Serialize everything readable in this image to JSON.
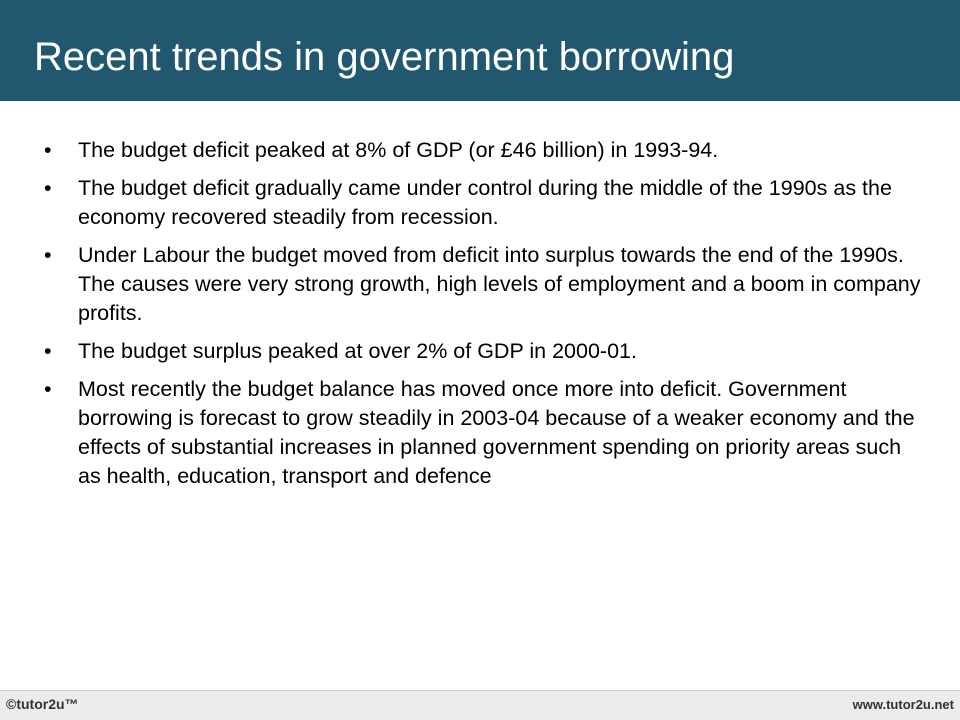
{
  "slide": {
    "title": "Recent trends in government borrowing",
    "bullet_glyph": "•",
    "bullets": [
      "The budget deficit peaked at 8% of GDP (or £46 billion) in 1993-94.",
      "The budget deficit gradually came under control during the middle of the 1990s as the economy recovered steadily from recession.",
      "Under Labour the budget moved from deficit into surplus towards the end of the 1990s. The causes were very strong growth, high levels of employment and a boom in company profits.",
      "The budget surplus peaked at over 2% of GDP in 2000-01.",
      "Most recently the budget balance has moved once more into deficit. Government borrowing is forecast to grow steadily in 2003-04 because of a weaker economy and the effects of substantial increases in planned government spending on priority areas such as health, education, transport and defence"
    ]
  },
  "footer": {
    "brand": "©tutor2u™",
    "url": "www.tutor2u.net"
  },
  "colors": {
    "title_bar": "#215870",
    "footer_bg": "#ececec"
  }
}
